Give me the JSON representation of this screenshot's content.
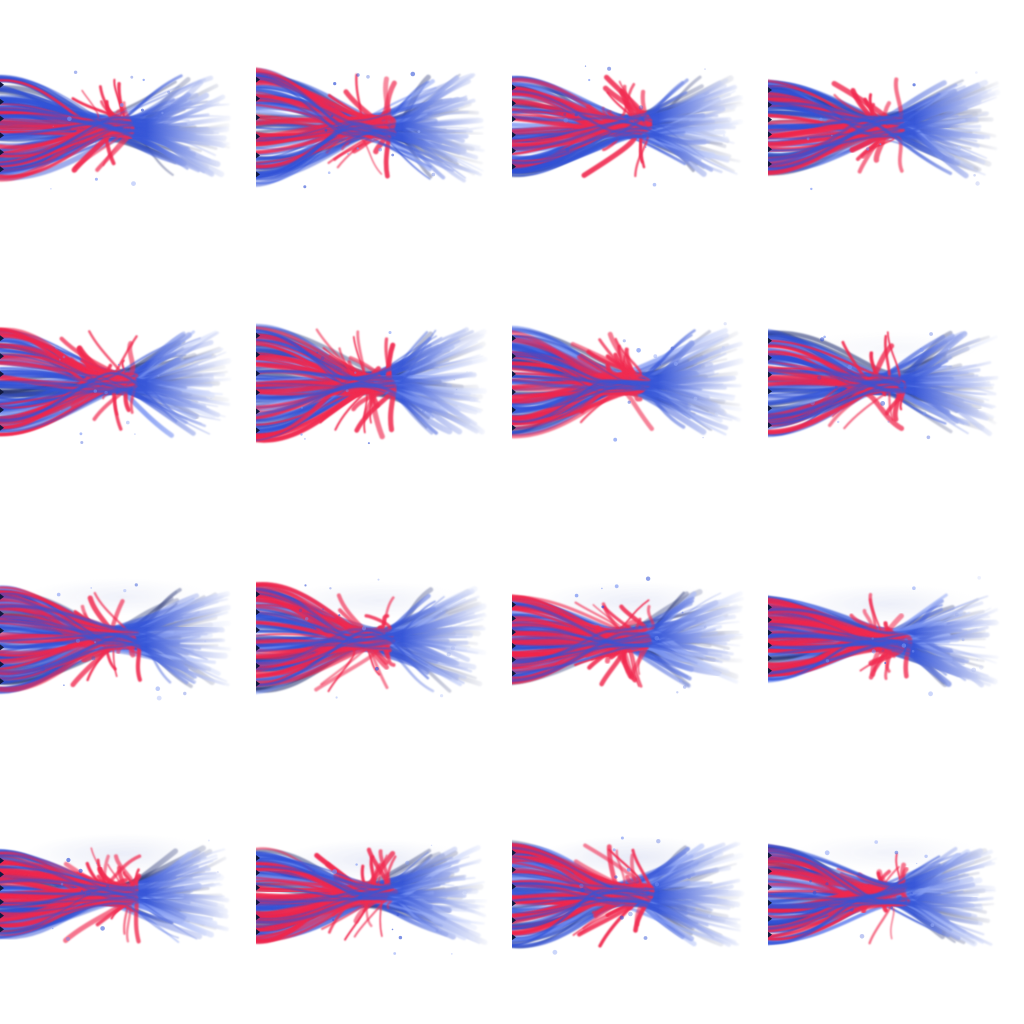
{
  "grid": {
    "rows": 4,
    "columns": 4
  },
  "colors": {
    "background": "#ffffff",
    "red_streak": "#f0244a",
    "blue_streak": "#2e4fd6",
    "light_blue": "#6f8cf2",
    "dark_edge": "#1c2a6e",
    "haze": "#d9def3"
  },
  "frames": [
    {
      "red": 0.3,
      "spread": 0.85,
      "haze": 0.1,
      "seed": 11
    },
    {
      "red": 0.35,
      "spread": 0.95,
      "haze": 0.05,
      "seed": 23
    },
    {
      "red": 0.35,
      "spread": 0.8,
      "haze": 0.1,
      "seed": 37
    },
    {
      "red": 0.3,
      "spread": 0.75,
      "haze": 0.1,
      "seed": 41
    },
    {
      "red": 0.35,
      "spread": 0.9,
      "haze": 0.15,
      "seed": 53
    },
    {
      "red": 0.4,
      "spread": 0.95,
      "haze": 0.1,
      "seed": 67
    },
    {
      "red": 0.3,
      "spread": 0.9,
      "haze": 0.2,
      "seed": 71
    },
    {
      "red": 0.2,
      "spread": 0.85,
      "haze": 0.25,
      "seed": 83
    },
    {
      "red": 0.35,
      "spread": 0.85,
      "haze": 0.45,
      "seed": 97
    },
    {
      "red": 0.45,
      "spread": 0.9,
      "haze": 0.45,
      "seed": 101
    },
    {
      "red": 0.55,
      "spread": 0.7,
      "haze": 0.55,
      "seed": 113
    },
    {
      "red": 0.6,
      "spread": 0.65,
      "haze": 0.55,
      "seed": 127
    },
    {
      "red": 0.6,
      "spread": 0.7,
      "haze": 0.6,
      "seed": 131
    },
    {
      "red": 0.55,
      "spread": 0.75,
      "haze": 0.65,
      "seed": 149
    },
    {
      "red": 0.5,
      "spread": 0.85,
      "haze": 0.7,
      "seed": 157
    },
    {
      "red": 0.35,
      "spread": 0.8,
      "haze": 0.4,
      "seed": 163
    }
  ]
}
